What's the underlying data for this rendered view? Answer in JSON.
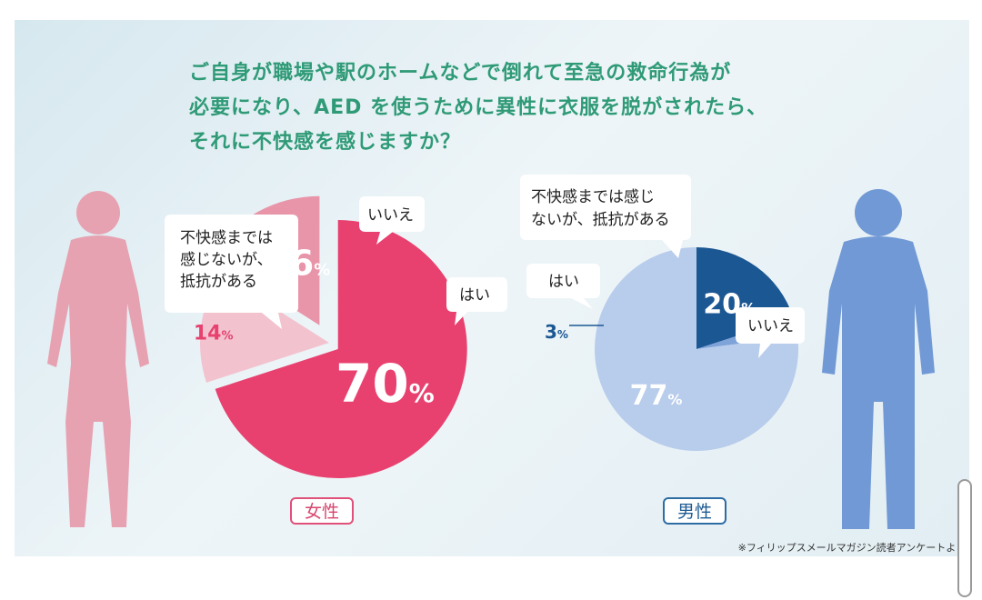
{
  "title_lines": [
    "ご自身が職場や駅のホームなどで倒れて至急の救命行為が",
    "必要になり、AED を使うために異性に衣服を脱がされたら、",
    "それに不快感を感じますか？"
  ],
  "chart_data": [
    {
      "type": "pie",
      "group": "女性",
      "slices": [
        {
          "label": "不快感までは感じないが、抵抗がある",
          "bubble_lines": [
            "不快感までは",
            "感じないが、",
            "抵抗がある"
          ],
          "value": 70,
          "color": "#e8416f"
        },
        {
          "label": "いいえ",
          "bubble_lines": [
            "いいえ"
          ],
          "value": 14,
          "color": "#f2c3cf"
        },
        {
          "label": "はい",
          "bubble_lines": [
            "はい"
          ],
          "value": 16,
          "color": "#e995a9"
        }
      ],
      "value_labels": [
        "70",
        "14",
        "16"
      ],
      "unit": "%"
    },
    {
      "type": "pie",
      "group": "男性",
      "slices": [
        {
          "label": "不快感までは感じないが、抵抗がある",
          "bubble_lines": [
            "不快感までは感じ",
            "ないが、抵抗がある"
          ],
          "value": 20,
          "color": "#1b5793"
        },
        {
          "label": "はい",
          "bubble_lines": [
            "はい"
          ],
          "value": 3,
          "color": "#7ea3d8"
        },
        {
          "label": "いいえ",
          "bubble_lines": [
            "いいえ"
          ],
          "value": 77,
          "color": "#b8ccec"
        }
      ],
      "value_labels": [
        "20",
        "3",
        "77"
      ],
      "unit": "%"
    }
  ],
  "colors": {
    "female_figure": "#e7a2b2",
    "male_figure": "#7199d5",
    "title": "#2f9a76"
  },
  "genders": {
    "female": "女性",
    "male": "男性"
  },
  "source_note": "※フィリップスメールマガジン読者アンケートより"
}
